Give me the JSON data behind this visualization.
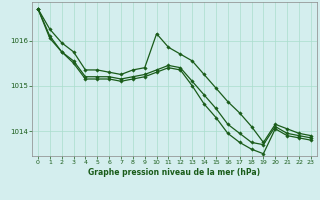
{
  "title": "Graphe pression niveau de la mer (hPa)",
  "background_color": "#d4eeee",
  "grid_color": "#aaddcc",
  "line_color": "#1a5c1a",
  "text_color": "#1a5c1a",
  "xlim": [
    -0.5,
    23.5
  ],
  "ylim": [
    1013.45,
    1016.85
  ],
  "yticks": [
    1014,
    1015,
    1016
  ],
  "xticks": [
    0,
    1,
    2,
    3,
    4,
    5,
    6,
    7,
    8,
    9,
    10,
    11,
    12,
    13,
    14,
    15,
    16,
    17,
    18,
    19,
    20,
    21,
    22,
    23
  ],
  "series": [
    [
      1016.7,
      1016.25,
      1015.95,
      1015.75,
      1015.35,
      1015.35,
      1015.3,
      1015.25,
      1015.35,
      1015.4,
      1016.15,
      1015.85,
      1015.7,
      1015.55,
      1015.25,
      1014.95,
      1014.65,
      1014.4,
      1014.1,
      1013.75,
      1014.15,
      1014.05,
      1013.95,
      1013.9
    ],
    [
      1016.7,
      1016.1,
      1015.75,
      1015.55,
      1015.2,
      1015.2,
      1015.2,
      1015.15,
      1015.2,
      1015.25,
      1015.35,
      1015.45,
      1015.4,
      1015.1,
      1014.8,
      1014.5,
      1014.15,
      1013.95,
      1013.75,
      1013.7,
      1014.1,
      1013.95,
      1013.9,
      1013.85
    ],
    [
      1016.7,
      1016.05,
      1015.75,
      1015.5,
      1015.15,
      1015.15,
      1015.15,
      1015.1,
      1015.15,
      1015.2,
      1015.3,
      1015.4,
      1015.35,
      1015.0,
      1014.6,
      1014.3,
      1013.95,
      1013.75,
      1013.6,
      1013.5,
      1014.05,
      1013.9,
      1013.85,
      1013.8
    ]
  ]
}
